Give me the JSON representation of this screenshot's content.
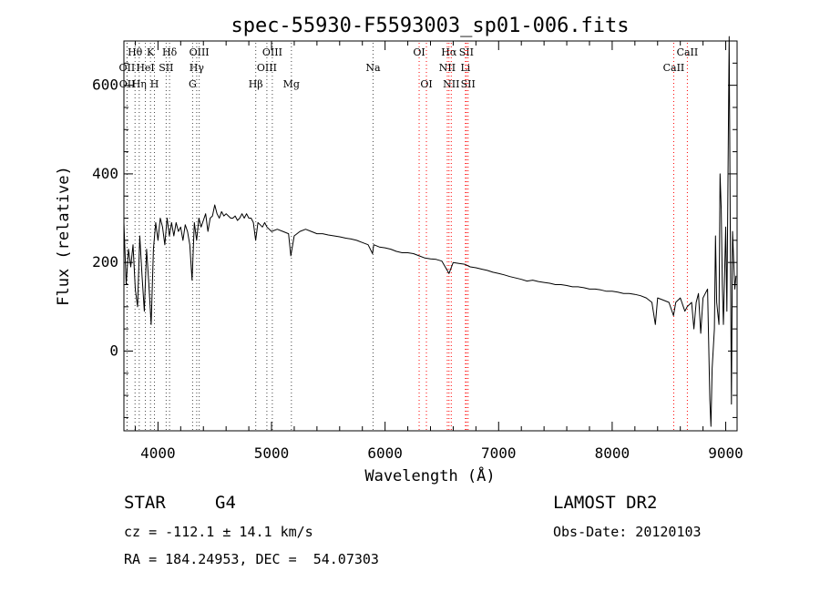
{
  "chart_data": {
    "type": "line",
    "title": "spec-55930-F5593003_sp01-006.fits",
    "xlabel": "Wavelength (Å)",
    "ylabel": "Flux (relative)",
    "xlim": [
      3700,
      9100
    ],
    "ylim": [
      -180,
      700
    ],
    "xticks": [
      4000,
      5000,
      6000,
      7000,
      8000,
      9000
    ],
    "yticks": [
      0,
      200,
      400,
      600
    ],
    "grid": false,
    "series": [
      {
        "values": [
          [
            3700,
            290
          ],
          [
            3720,
            150
          ],
          [
            3740,
            230
          ],
          [
            3760,
            190
          ],
          [
            3780,
            240
          ],
          [
            3800,
            140
          ],
          [
            3820,
            100
          ],
          [
            3840,
            260
          ],
          [
            3860,
            170
          ],
          [
            3880,
            90
          ],
          [
            3900,
            230
          ],
          [
            3920,
            150
          ],
          [
            3940,
            60
          ],
          [
            3960,
            230
          ],
          [
            3980,
            290
          ],
          [
            4000,
            250
          ],
          [
            4020,
            300
          ],
          [
            4040,
            280
          ],
          [
            4060,
            240
          ],
          [
            4080,
            300
          ],
          [
            4100,
            260
          ],
          [
            4120,
            290
          ],
          [
            4140,
            260
          ],
          [
            4160,
            290
          ],
          [
            4180,
            270
          ],
          [
            4200,
            280
          ],
          [
            4220,
            250
          ],
          [
            4240,
            285
          ],
          [
            4260,
            270
          ],
          [
            4280,
            240
          ],
          [
            4300,
            160
          ],
          [
            4320,
            290
          ],
          [
            4340,
            250
          ],
          [
            4360,
            300
          ],
          [
            4380,
            280
          ],
          [
            4400,
            295
          ],
          [
            4420,
            310
          ],
          [
            4440,
            270
          ],
          [
            4460,
            300
          ],
          [
            4480,
            305
          ],
          [
            4500,
            330
          ],
          [
            4520,
            310
          ],
          [
            4540,
            300
          ],
          [
            4560,
            315
          ],
          [
            4580,
            305
          ],
          [
            4600,
            310
          ],
          [
            4620,
            305
          ],
          [
            4640,
            300
          ],
          [
            4660,
            300
          ],
          [
            4680,
            305
          ],
          [
            4700,
            295
          ],
          [
            4720,
            300
          ],
          [
            4740,
            310
          ],
          [
            4760,
            300
          ],
          [
            4780,
            310
          ],
          [
            4800,
            300
          ],
          [
            4820,
            300
          ],
          [
            4840,
            290
          ],
          [
            4860,
            250
          ],
          [
            4880,
            290
          ],
          [
            4900,
            285
          ],
          [
            4920,
            280
          ],
          [
            4940,
            290
          ],
          [
            4960,
            280
          ],
          [
            4980,
            275
          ],
          [
            5000,
            270
          ],
          [
            5050,
            275
          ],
          [
            5100,
            270
          ],
          [
            5150,
            265
          ],
          [
            5170,
            215
          ],
          [
            5200,
            260
          ],
          [
            5250,
            270
          ],
          [
            5300,
            275
          ],
          [
            5350,
            270
          ],
          [
            5400,
            265
          ],
          [
            5450,
            265
          ],
          [
            5500,
            262
          ],
          [
            5550,
            260
          ],
          [
            5600,
            258
          ],
          [
            5650,
            255
          ],
          [
            5700,
            253
          ],
          [
            5750,
            250
          ],
          [
            5800,
            245
          ],
          [
            5850,
            240
          ],
          [
            5890,
            220
          ],
          [
            5900,
            240
          ],
          [
            5950,
            235
          ],
          [
            6000,
            233
          ],
          [
            6050,
            230
          ],
          [
            6100,
            225
          ],
          [
            6150,
            222
          ],
          [
            6200,
            222
          ],
          [
            6250,
            220
          ],
          [
            6300,
            215
          ],
          [
            6350,
            210
          ],
          [
            6400,
            208
          ],
          [
            6450,
            207
          ],
          [
            6500,
            203
          ],
          [
            6563,
            175
          ],
          [
            6600,
            200
          ],
          [
            6650,
            198
          ],
          [
            6700,
            196
          ],
          [
            6750,
            190
          ],
          [
            6800,
            188
          ],
          [
            6850,
            185
          ],
          [
            6900,
            182
          ],
          [
            6950,
            178
          ],
          [
            7000,
            175
          ],
          [
            7050,
            172
          ],
          [
            7100,
            168
          ],
          [
            7150,
            165
          ],
          [
            7200,
            162
          ],
          [
            7250,
            158
          ],
          [
            7300,
            160
          ],
          [
            7350,
            157
          ],
          [
            7400,
            155
          ],
          [
            7450,
            153
          ],
          [
            7500,
            150
          ],
          [
            7550,
            150
          ],
          [
            7600,
            148
          ],
          [
            7650,
            145
          ],
          [
            7700,
            145
          ],
          [
            7750,
            143
          ],
          [
            7800,
            140
          ],
          [
            7850,
            140
          ],
          [
            7900,
            138
          ],
          [
            7950,
            135
          ],
          [
            8000,
            135
          ],
          [
            8050,
            133
          ],
          [
            8100,
            130
          ],
          [
            8150,
            130
          ],
          [
            8200,
            128
          ],
          [
            8250,
            125
          ],
          [
            8300,
            120
          ],
          [
            8350,
            110
          ],
          [
            8380,
            60
          ],
          [
            8400,
            120
          ],
          [
            8450,
            115
          ],
          [
            8500,
            110
          ],
          [
            8540,
            80
          ],
          [
            8560,
            110
          ],
          [
            8600,
            120
          ],
          [
            8640,
            90
          ],
          [
            8660,
            100
          ],
          [
            8700,
            110
          ],
          [
            8720,
            50
          ],
          [
            8740,
            110
          ],
          [
            8760,
            130
          ],
          [
            8780,
            40
          ],
          [
            8800,
            120
          ],
          [
            8820,
            130
          ],
          [
            8840,
            140
          ],
          [
            8860,
            -110
          ],
          [
            8870,
            -170
          ],
          [
            8880,
            -40
          ],
          [
            8900,
            50
          ],
          [
            8910,
            260
          ],
          [
            8920,
            110
          ],
          [
            8940,
            60
          ],
          [
            8950,
            400
          ],
          [
            8960,
            320
          ],
          [
            8970,
            150
          ],
          [
            8980,
            60
          ],
          [
            9000,
            280
          ],
          [
            9010,
            90
          ],
          [
            9030,
            710
          ],
          [
            9040,
            280
          ],
          [
            9050,
            -120
          ],
          [
            9060,
            270
          ],
          [
            9080,
            140
          ],
          [
            9090,
            170
          ]
        ]
      }
    ],
    "spectral_lines": [
      {
        "label": "Hθ",
        "x": 3798,
        "row": 1
      },
      {
        "label": "OII",
        "x": 3727,
        "row": 2
      },
      {
        "label": "OII",
        "x": 3729,
        "row": 3
      },
      {
        "label": "HeI",
        "x": 3889,
        "row": 2
      },
      {
        "label": "Hη",
        "x": 3835,
        "row": 3
      },
      {
        "label": "K",
        "x": 3934,
        "row": 1
      },
      {
        "label": "H",
        "x": 3969,
        "row": 3
      },
      {
        "label": "SII",
        "x": 4072,
        "row": 2
      },
      {
        "label": "Hδ",
        "x": 4102,
        "row": 1
      },
      {
        "label": "OIII",
        "x": 4363,
        "row": 1
      },
      {
        "label": "Hγ",
        "x": 4341,
        "row": 2
      },
      {
        "label": "G",
        "x": 4305,
        "row": 3
      },
      {
        "label": "Hβ",
        "x": 4861,
        "row": 3
      },
      {
        "label": "OIII",
        "x": 5007,
        "row": 1
      },
      {
        "label": "OIII",
        "x": 4959,
        "row": 2
      },
      {
        "label": "Mg",
        "x": 5175,
        "row": 3
      },
      {
        "label": "Na",
        "x": 5894,
        "row": 2
      },
      {
        "label": "OI",
        "x": 6300,
        "row": 1
      },
      {
        "label": "OI",
        "x": 6364,
        "row": 3
      },
      {
        "label": "Hα",
        "x": 6563,
        "row": 1
      },
      {
        "label": "SII",
        "x": 6716,
        "row": 1
      },
      {
        "label": "NII",
        "x": 6548,
        "row": 2
      },
      {
        "label": "Li",
        "x": 6708,
        "row": 2
      },
      {
        "label": "NII",
        "x": 6583,
        "row": 3
      },
      {
        "label": "SII",
        "x": 6731,
        "row": 3
      },
      {
        "label": "CaII",
        "x": 8542,
        "row": 2
      },
      {
        "label": "CaII",
        "x": 8662,
        "row": 1
      }
    ],
    "line_colors": {
      "emission": "#ff0000",
      "absorption": "#000000"
    }
  },
  "info": {
    "object_type": "STAR",
    "subclass": "G4",
    "survey": "LAMOST DR2",
    "cz_line": "cz = -112.1 ± 14.1 km/s",
    "obs_date": "Obs-Date: 20120103",
    "coords": "RA = 184.24953, DEC =  54.07303"
  }
}
